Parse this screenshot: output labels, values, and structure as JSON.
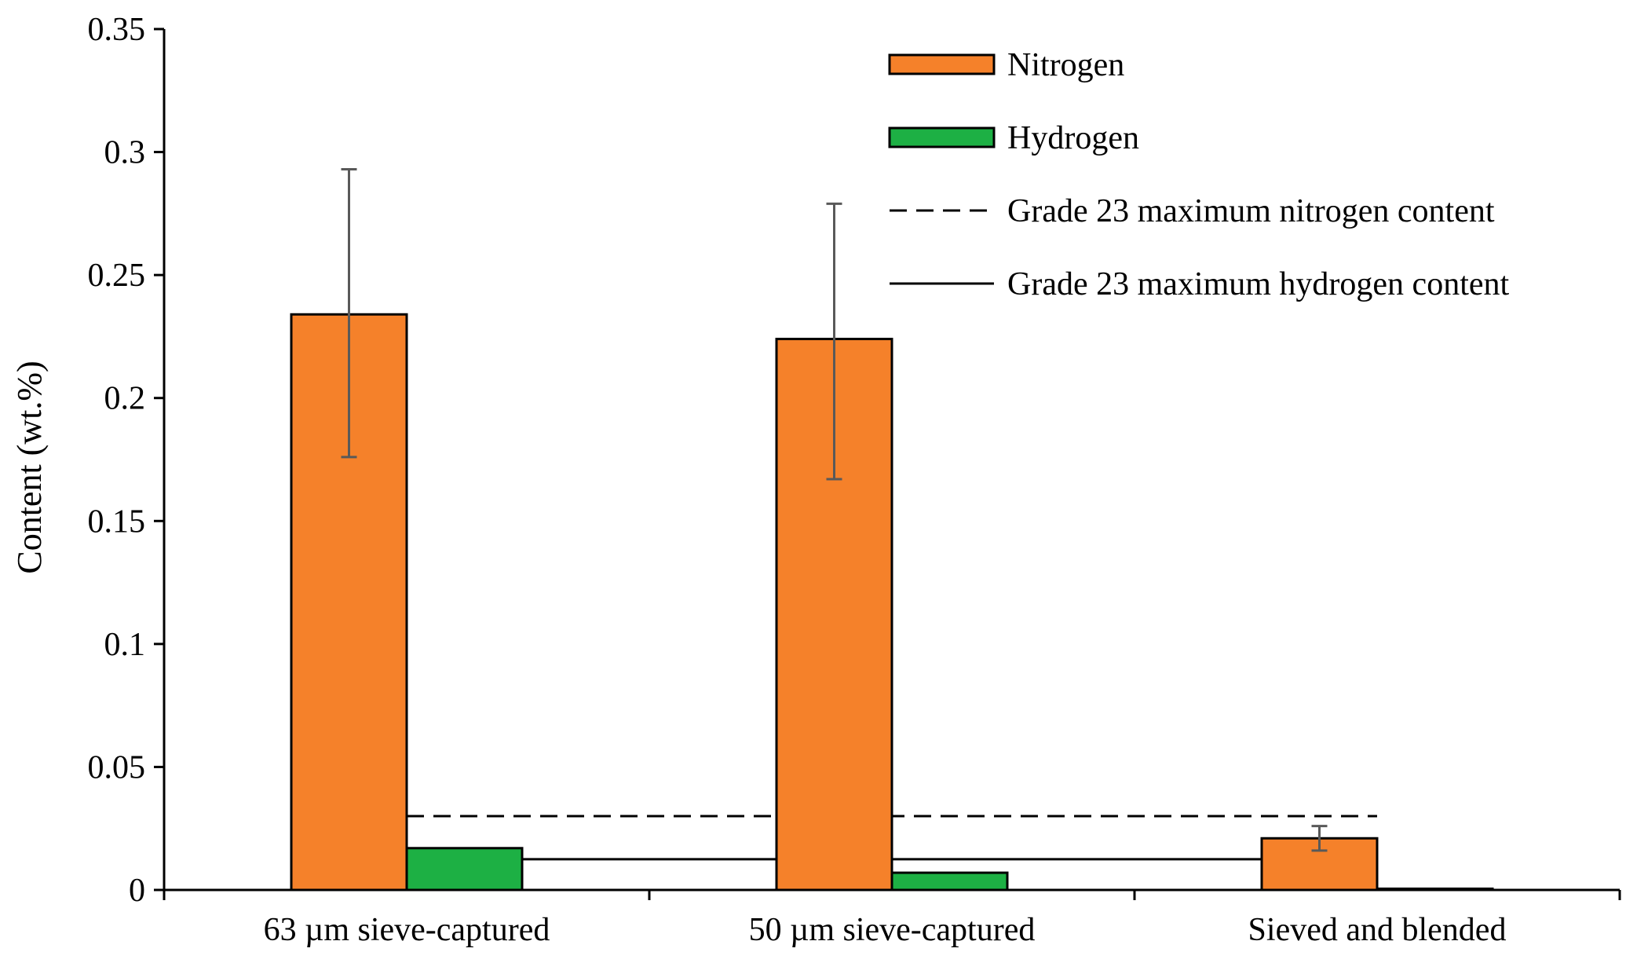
{
  "chart_data": {
    "type": "bar",
    "title": "",
    "xlabel": "",
    "ylabel": "Content (wt.%)",
    "ylim": [
      0,
      0.35
    ],
    "yticks": [
      0,
      0.05,
      0.1,
      0.15,
      0.2,
      0.25,
      0.3,
      0.35
    ],
    "ytick_labels": [
      "0",
      "0.05",
      "0.1",
      "0.15",
      "0.2",
      "0.25",
      "0.3",
      "0.35"
    ],
    "grid": false,
    "legend_position": "top-right",
    "categories": [
      "63 µm sieve-captured",
      "50 µm sieve-captured",
      "Sieved and blended"
    ],
    "series": [
      {
        "name": "Nitrogen",
        "color": "#F5812A",
        "values": [
          0.234,
          0.224,
          0.021
        ],
        "error": [
          [
            0.176,
            0.293
          ],
          [
            0.167,
            0.279
          ],
          [
            0.016,
            0.026
          ]
        ]
      },
      {
        "name": "Hydrogen",
        "color": "#1DB044",
        "values": [
          0.017,
          0.007,
          0.0005
        ],
        "error": null
      }
    ],
    "reference_lines": [
      {
        "name": "Grade 23 maximum nitrogen content",
        "value": 0.03,
        "style": "dashed",
        "color": "#000000"
      },
      {
        "name": "Grade 23 maximum hydrogen content",
        "value": 0.0125,
        "style": "solid",
        "color": "#000000"
      }
    ],
    "colors": {
      "axis": "#000000",
      "error_bar": "#595959",
      "bar_edge": "#000000"
    }
  }
}
